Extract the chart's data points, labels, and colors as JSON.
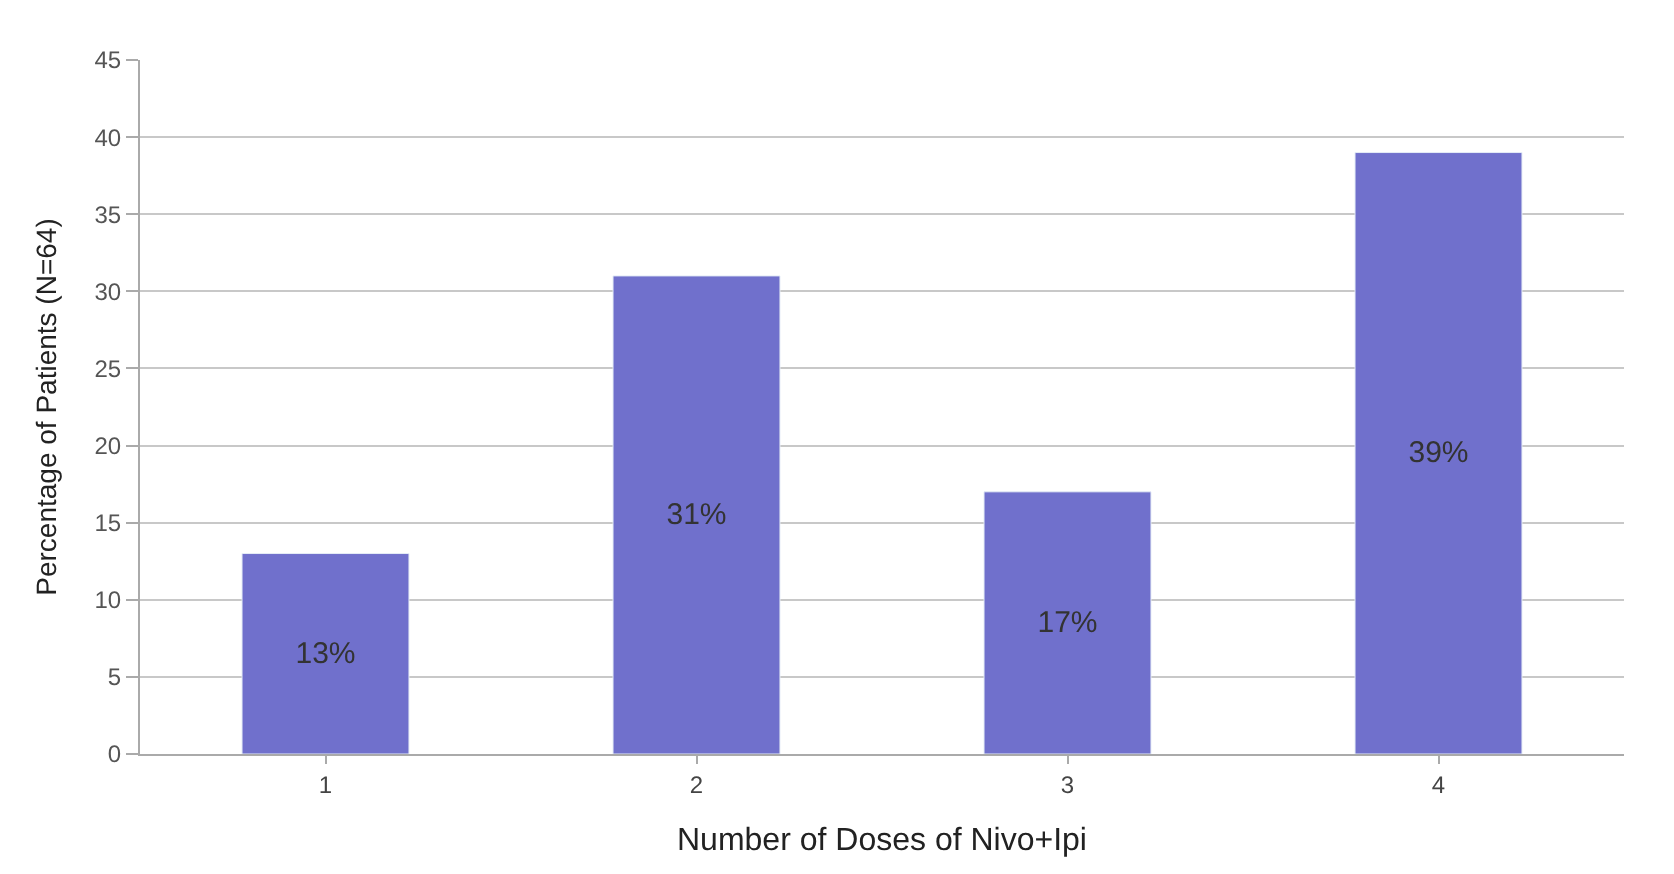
{
  "chart_data": {
    "type": "bar",
    "xlabel": "Number of Doses of Nivo+Ipi",
    "ylabel": "Percentage of Patients (N=64)",
    "categories": [
      "1",
      "2",
      "3",
      "4"
    ],
    "values": [
      13,
      31,
      17,
      39
    ],
    "value_labels": [
      "13%",
      "31%",
      "17%",
      "39%"
    ],
    "color": "#7070cc",
    "ylim": [
      0,
      45
    ],
    "yticks": [
      0,
      5,
      10,
      15,
      20,
      25,
      30,
      35,
      40,
      45
    ],
    "grid": "y"
  }
}
